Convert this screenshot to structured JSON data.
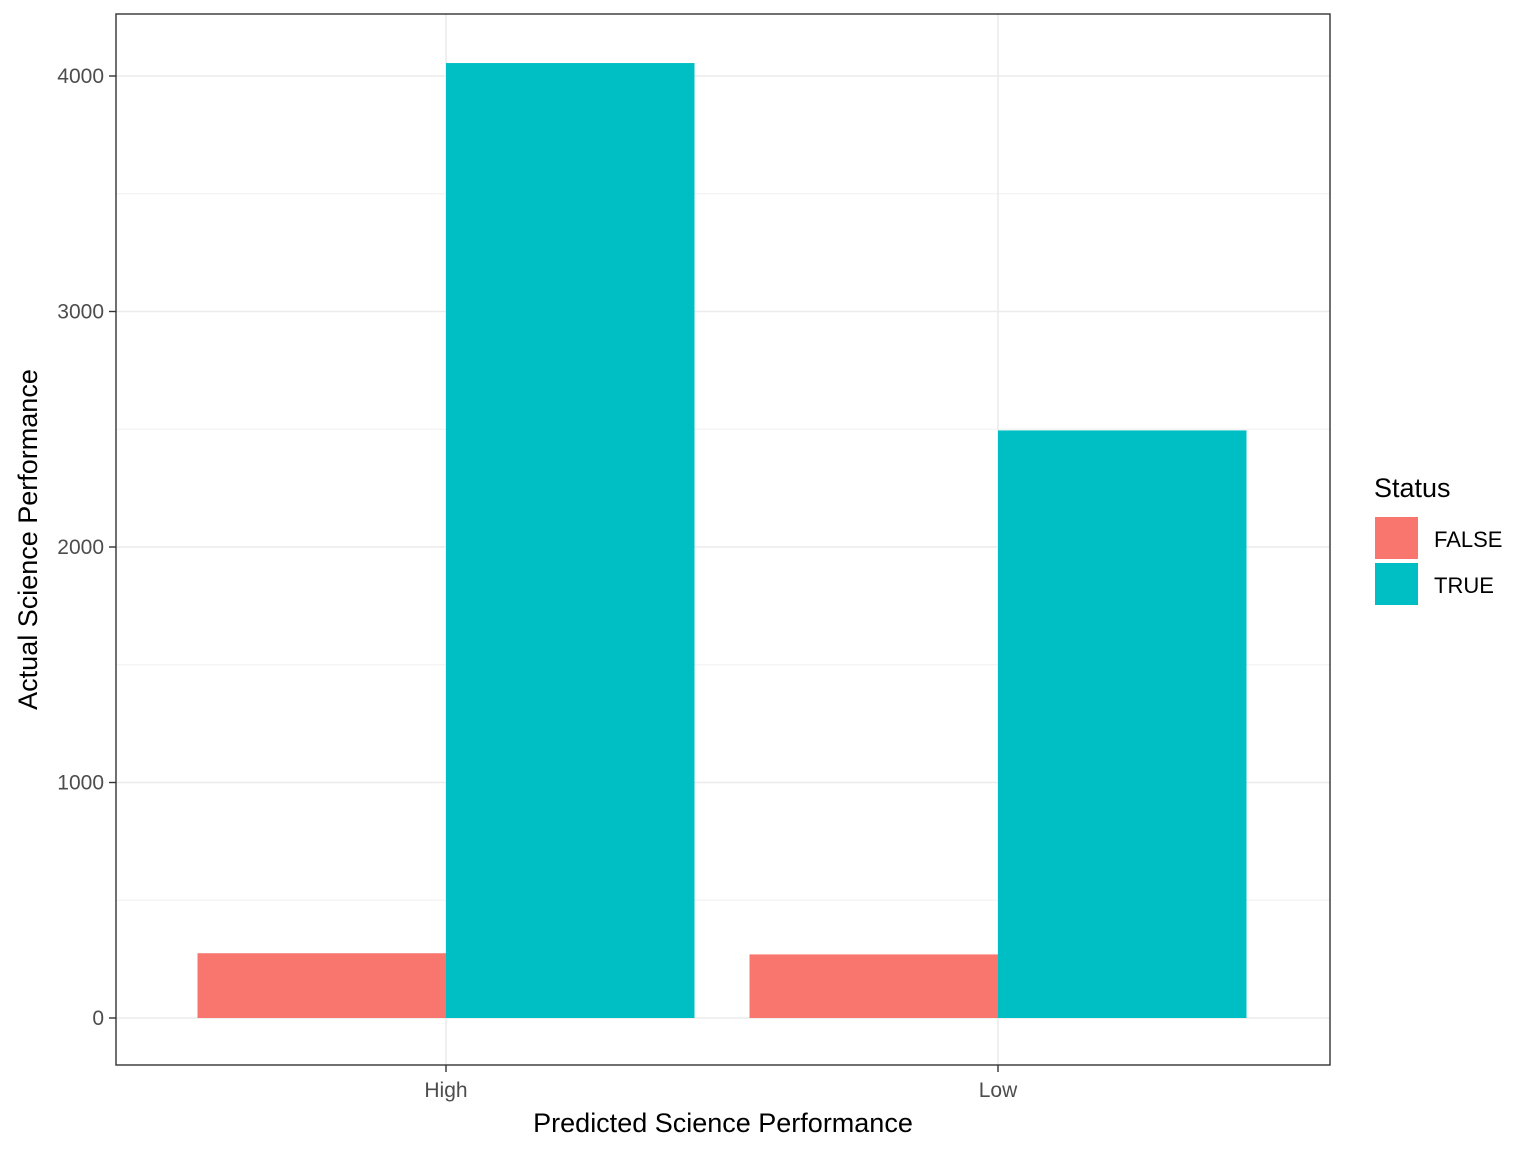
{
  "chart_data": {
    "type": "bar",
    "title": "",
    "xlabel": "Predicted Science Performance",
    "ylabel": "Actual Science Performance",
    "categories": [
      "High",
      "Low"
    ],
    "series": [
      {
        "name": "FALSE",
        "values": [
          275,
          270
        ]
      },
      {
        "name": "TRUE",
        "values": [
          4055,
          2495
        ]
      }
    ],
    "ylim": [
      -200,
      4260
    ],
    "yticks": [
      0,
      1000,
      2000,
      3000,
      4000
    ],
    "ytick_labels": [
      "0",
      "1000",
      "2000",
      "3000",
      "4000"
    ],
    "grid": true,
    "legend": {
      "title": "Status",
      "placement": "right"
    }
  },
  "colors": {
    "FALSE": "#F8766D",
    "TRUE": "#00BFC4"
  }
}
